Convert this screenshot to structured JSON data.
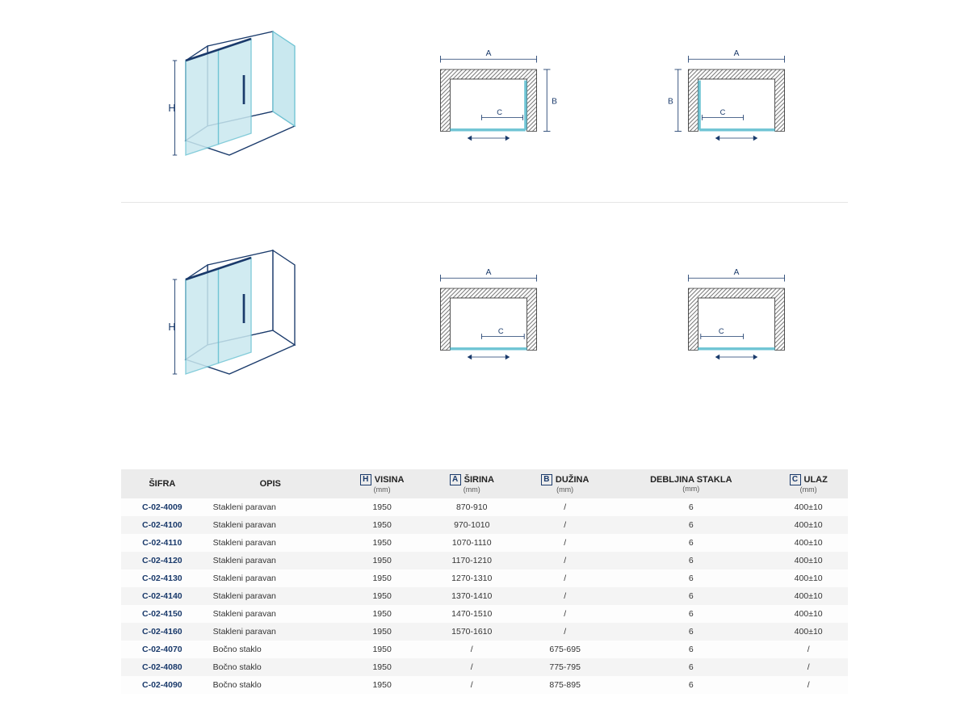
{
  "colors": {
    "line": "#1a3a6b",
    "glass": "#c9e8ef",
    "glass_stroke": "#6fc4d4",
    "wall_hatch": "#5a5a5a",
    "text": "#1a3a6b",
    "header_bg": "#ececec",
    "row_alt": "#f4f4f4"
  },
  "diagrams": {
    "iso_labels": {
      "H": "H"
    },
    "plan_labels": {
      "A": "A",
      "B": "B",
      "C": "C"
    }
  },
  "table": {
    "headers": [
      {
        "label": "ŠIFRA",
        "icon": null,
        "unit": null
      },
      {
        "label": "OPIS",
        "icon": null,
        "unit": null
      },
      {
        "label": "VISINA",
        "icon": "H",
        "unit": "(mm)"
      },
      {
        "label": "ŠIRINA",
        "icon": "A",
        "unit": "(mm)"
      },
      {
        "label": "DUŽINA",
        "icon": "B",
        "unit": "(mm)"
      },
      {
        "label": "DEBLJINA STAKLA",
        "icon": null,
        "unit": "(mm)"
      },
      {
        "label": "ULAZ",
        "icon": "C",
        "unit": "(mm)"
      }
    ],
    "rows": [
      [
        "C-02-4009",
        "Stakleni paravan",
        "1950",
        "870-910",
        "/",
        "6",
        "400±10"
      ],
      [
        "C-02-4100",
        "Stakleni paravan",
        "1950",
        "970-1010",
        "/",
        "6",
        "400±10"
      ],
      [
        "C-02-4110",
        "Stakleni paravan",
        "1950",
        "1070-1110",
        "/",
        "6",
        "400±10"
      ],
      [
        "C-02-4120",
        "Stakleni paravan",
        "1950",
        "1170-1210",
        "/",
        "6",
        "400±10"
      ],
      [
        "C-02-4130",
        "Stakleni paravan",
        "1950",
        "1270-1310",
        "/",
        "6",
        "400±10"
      ],
      [
        "C-02-4140",
        "Stakleni paravan",
        "1950",
        "1370-1410",
        "/",
        "6",
        "400±10"
      ],
      [
        "C-02-4150",
        "Stakleni paravan",
        "1950",
        "1470-1510",
        "/",
        "6",
        "400±10"
      ],
      [
        "C-02-4160",
        "Stakleni paravan",
        "1950",
        "1570-1610",
        "/",
        "6",
        "400±10"
      ],
      [
        "C-02-4070",
        "Bočno staklo",
        "1950",
        "/",
        "675-695",
        "6",
        "/"
      ],
      [
        "C-02-4080",
        "Bočno staklo",
        "1950",
        "/",
        "775-795",
        "6",
        "/"
      ],
      [
        "C-02-4090",
        "Bočno staklo",
        "1950",
        "/",
        "875-895",
        "6",
        "/"
      ]
    ]
  }
}
